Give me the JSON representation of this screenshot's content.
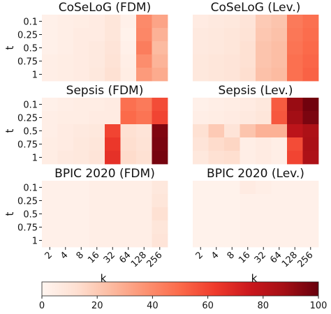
{
  "chart_data": {
    "type": "heatmap",
    "colormap": "Reds",
    "vmin": 0,
    "vmax": 100,
    "colorbar_ticks": [
      0,
      20,
      40,
      60,
      80,
      100
    ],
    "x_tick_labels": [
      "2",
      "4",
      "8",
      "16",
      "32",
      "64",
      "128",
      "256"
    ],
    "y_tick_labels": [
      "0.1",
      "0.25",
      "0.5",
      "0.75",
      "1"
    ],
    "xlabel": "k",
    "ylabel": "t",
    "panels": [
      {
        "title": "CoSeLoG (FDM)",
        "values": [
          [
            3,
            4,
            5,
            6,
            9,
            3,
            40,
            32
          ],
          [
            3,
            4,
            6,
            6,
            9,
            2,
            41,
            28
          ],
          [
            3,
            4,
            6,
            7,
            10,
            3,
            44,
            25
          ],
          [
            4,
            5,
            6,
            7,
            11,
            4,
            39,
            27
          ],
          [
            4,
            5,
            6,
            8,
            12,
            5,
            35,
            30
          ]
        ]
      },
      {
        "title": "CoSeLoG (Lev.)",
        "values": [
          [
            6,
            7,
            8,
            10,
            20,
            22,
            45,
            48
          ],
          [
            7,
            8,
            9,
            11,
            21,
            23,
            46,
            49
          ],
          [
            7,
            8,
            9,
            12,
            22,
            24,
            47,
            50
          ],
          [
            8,
            9,
            10,
            12,
            22,
            24,
            48,
            51
          ],
          [
            8,
            9,
            10,
            13,
            23,
            25,
            48,
            52
          ]
        ]
      },
      {
        "title": "Sepsis (FDM)",
        "values": [
          [
            3,
            4,
            5,
            5,
            6,
            48,
            45,
            58
          ],
          [
            4,
            5,
            5,
            6,
            6,
            50,
            47,
            60
          ],
          [
            4,
            6,
            7,
            8,
            60,
            12,
            10,
            95
          ],
          [
            5,
            6,
            8,
            9,
            64,
            13,
            11,
            96
          ],
          [
            5,
            7,
            8,
            10,
            66,
            14,
            12,
            97
          ]
        ]
      },
      {
        "title": "Sepsis (Lev.)",
        "values": [
          [
            3,
            4,
            5,
            6,
            8,
            54,
            90,
            98
          ],
          [
            4,
            5,
            6,
            7,
            9,
            55,
            88,
            96
          ],
          [
            12,
            20,
            10,
            22,
            28,
            28,
            80,
            85
          ],
          [
            10,
            14,
            16,
            4,
            6,
            4,
            58,
            86
          ],
          [
            8,
            12,
            13,
            4,
            6,
            4,
            60,
            85
          ]
        ]
      },
      {
        "title": "BPIC 2020 (FDM)",
        "values": [
          [
            3,
            3,
            3,
            4,
            4,
            4,
            4,
            8
          ],
          [
            3,
            3,
            3,
            4,
            4,
            4,
            4,
            9
          ],
          [
            3,
            3,
            3,
            4,
            4,
            4,
            4,
            12
          ],
          [
            3,
            3,
            3,
            4,
            4,
            4,
            4,
            9
          ],
          [
            3,
            3,
            3,
            4,
            4,
            4,
            4,
            10
          ]
        ]
      },
      {
        "title": "BPIC 2020 (Lev.)",
        "values": [
          [
            2,
            2,
            2,
            6,
            4,
            3,
            3,
            3
          ],
          [
            2,
            2,
            2,
            3,
            3,
            3,
            3,
            3
          ],
          [
            2,
            2,
            2,
            3,
            3,
            3,
            3,
            3
          ],
          [
            2,
            2,
            2,
            3,
            3,
            3,
            3,
            3
          ],
          [
            2,
            2,
            2,
            3,
            3,
            3,
            3,
            3
          ]
        ]
      }
    ]
  }
}
